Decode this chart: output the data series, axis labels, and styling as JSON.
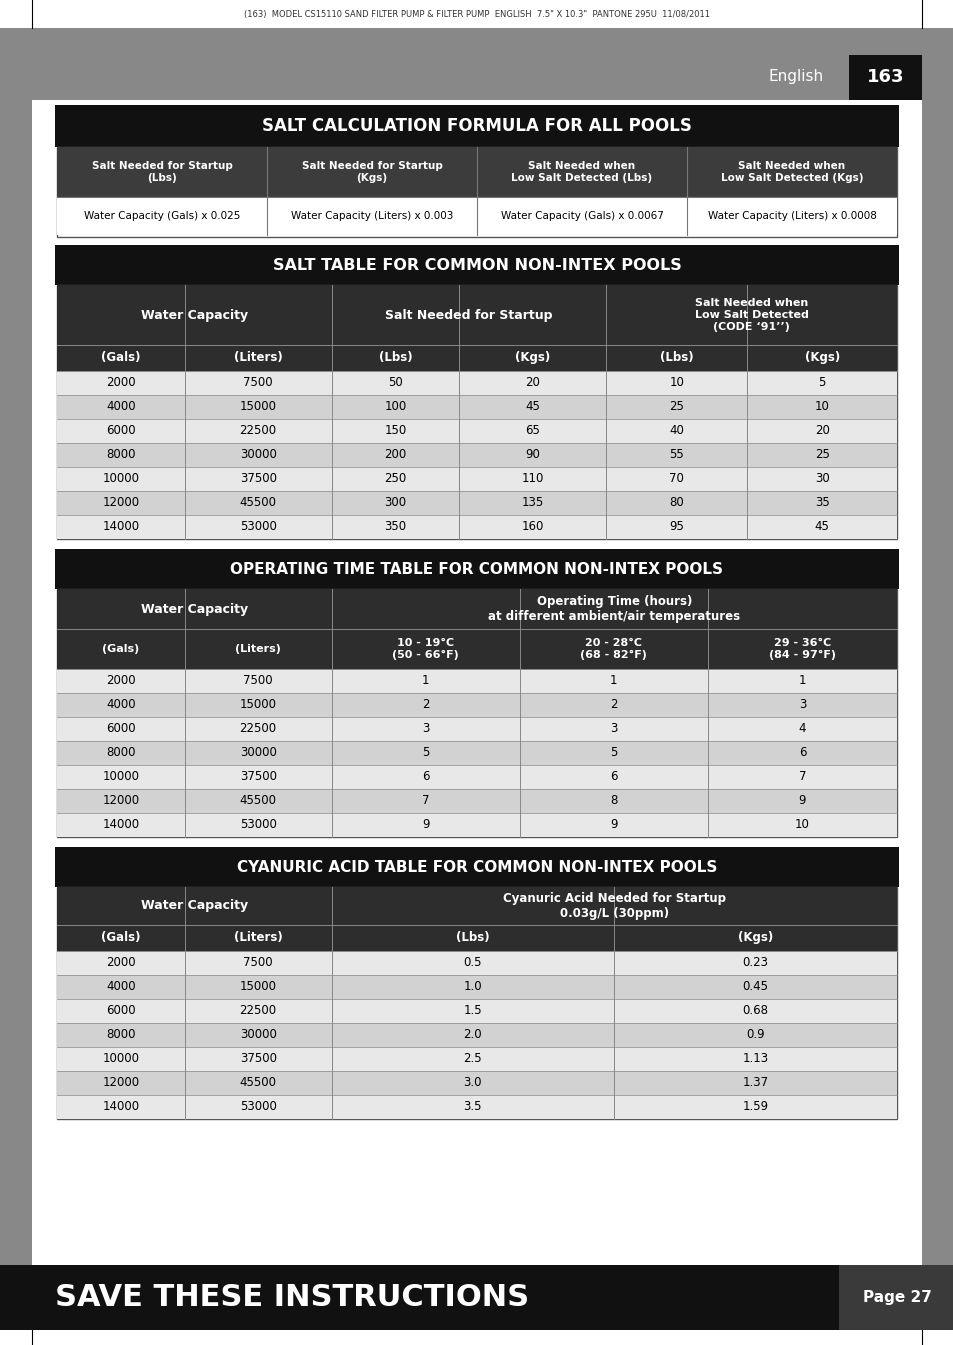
{
  "header_text": "(163)  MODEL CS15110 SAND FILTER PUMP & FILTER PUMP  ENGLISH  7.5\" X 10.3\"  PANTONE 295U  11/08/2011",
  "section1_title": "SALT CALCULATION FORMULA FOR ALL POOLS",
  "salt_formula_headers": [
    "Salt Needed for Startup\n(Lbs)",
    "Salt Needed for Startup\n(Kgs)",
    "Salt Needed when\nLow Salt Detected (Lbs)",
    "Salt Needed when\nLow Salt Detected (Kgs)"
  ],
  "salt_formula_values": [
    "Water Capacity (Gals) x 0.025",
    "Water Capacity (Liters) x 0.003",
    "Water Capacity (Gals) x 0.0067",
    "Water Capacity (Liters) x 0.0008"
  ],
  "section2_title": "SALT TABLE FOR COMMON NON-INTEX POOLS",
  "salt_table_col_headers": [
    "(Gals)",
    "(Liters)",
    "(Lbs)",
    "(Kgs)",
    "(Lbs)",
    "(Kgs)"
  ],
  "salt_table_data": [
    [
      2000,
      7500,
      50,
      20,
      10,
      5
    ],
    [
      4000,
      15000,
      100,
      45,
      25,
      10
    ],
    [
      6000,
      22500,
      150,
      65,
      40,
      20
    ],
    [
      8000,
      30000,
      200,
      90,
      55,
      25
    ],
    [
      10000,
      37500,
      250,
      110,
      70,
      30
    ],
    [
      12000,
      45500,
      300,
      135,
      80,
      35
    ],
    [
      14000,
      53000,
      350,
      160,
      95,
      45
    ]
  ],
  "section3_title": "OPERATING TIME TABLE FOR COMMON NON-INTEX POOLS",
  "op_table_col_headers": [
    "(Gals)",
    "(Liters)",
    "10 - 19°C\n(50 - 66°F)",
    "20 - 28°C\n(68 - 82°F)",
    "29 - 36°C\n(84 - 97°F)"
  ],
  "op_table_data": [
    [
      2000,
      7500,
      1,
      1,
      1
    ],
    [
      4000,
      15000,
      2,
      2,
      3
    ],
    [
      6000,
      22500,
      3,
      3,
      4
    ],
    [
      8000,
      30000,
      5,
      5,
      6
    ],
    [
      10000,
      37500,
      6,
      6,
      7
    ],
    [
      12000,
      45500,
      7,
      8,
      9
    ],
    [
      14000,
      53000,
      9,
      9,
      10
    ]
  ],
  "section4_title": "CYANURIC ACID TABLE FOR COMMON NON-INTEX POOLS",
  "cya_table_col_headers": [
    "(Gals)",
    "(Liters)",
    "(Lbs)",
    "(Kgs)"
  ],
  "cya_table_data": [
    [
      2000,
      7500,
      0.5,
      0.23
    ],
    [
      4000,
      15000,
      1.0,
      0.45
    ],
    [
      6000,
      22500,
      1.5,
      0.68
    ],
    [
      8000,
      30000,
      2.0,
      0.9
    ],
    [
      10000,
      37500,
      2.5,
      1.13
    ],
    [
      12000,
      45500,
      3.0,
      1.37
    ],
    [
      14000,
      53000,
      3.5,
      1.59
    ]
  ],
  "footer_text": "SAVE THESE INSTRUCTIONS",
  "footer_page": "Page 27"
}
